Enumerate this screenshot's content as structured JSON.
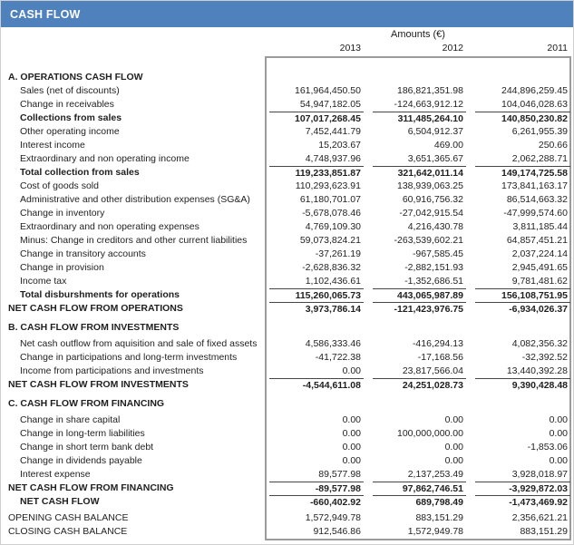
{
  "title_bar": {
    "title": "CASH FLOW",
    "accent_color": "#4f81bd",
    "title_color": "#ffffff"
  },
  "table": {
    "amounts_header": "Amounts (€)",
    "years": [
      "2013",
      "2012",
      "2011"
    ],
    "box_border_color": "#9b9b9b",
    "sum_line_color": "#474747",
    "rows": [
      {
        "type": "section",
        "label": "A. OPERATIONS CASH FLOW"
      },
      {
        "type": "item",
        "label": "Sales (net of discounts)",
        "values": [
          "161,964,450.50",
          "186,821,351.98",
          "244,896,259.45"
        ]
      },
      {
        "type": "item",
        "label": "Change in receivables",
        "values": [
          "54,947,182.05",
          "-124,663,912.12",
          "104,046,028.63"
        ]
      },
      {
        "type": "subtotal",
        "label": "Collections from sales",
        "values": [
          "107,017,268.45",
          "311,485,264.10",
          "140,850,230.82"
        ]
      },
      {
        "type": "item",
        "label": "Other operating income",
        "values": [
          "7,452,441.79",
          "6,504,912.37",
          "6,261,955.39"
        ]
      },
      {
        "type": "item",
        "label": "Interest income",
        "values": [
          "15,203.67",
          "469.00",
          "250.66"
        ]
      },
      {
        "type": "item",
        "label": "Extraordinary and non operating income",
        "values": [
          "4,748,937.96",
          "3,651,365.67",
          "2,062,288.71"
        ]
      },
      {
        "type": "subtotal",
        "label": "Total collection from sales",
        "values": [
          "119,233,851.87",
          "321,642,011.14",
          "149,174,725.58"
        ]
      },
      {
        "type": "item",
        "label": "Cost of goods sold",
        "values": [
          "110,293,623.91",
          "138,939,063.25",
          "173,841,163.17"
        ]
      },
      {
        "type": "item",
        "label": "Administrative and other distribution expenses (SG&A)",
        "values": [
          "61,180,701.07",
          "60,916,756.32",
          "86,514,663.32"
        ]
      },
      {
        "type": "item",
        "label": "Change in inventory",
        "values": [
          "-5,678,078.46",
          "-27,042,915.54",
          "-47,999,574.60"
        ]
      },
      {
        "type": "item",
        "label": "Extraordinary and non operating expenses",
        "values": [
          "4,769,109.30",
          "4,216,430.78",
          "3,811,185.44"
        ]
      },
      {
        "type": "item",
        "label": "Minus: Change in creditors and other current liabilities",
        "values": [
          "59,073,824.21",
          "-263,539,602.21",
          "64,857,451.21"
        ]
      },
      {
        "type": "item",
        "label": "Change in transitory accounts",
        "values": [
          "-37,261.19",
          "-967,585.45",
          "2,037,224.14"
        ]
      },
      {
        "type": "item",
        "label": "Change in provision",
        "values": [
          "-2,628,836.32",
          "-2,882,151.93",
          "2,945,491.65"
        ]
      },
      {
        "type": "item",
        "label": "Income tax",
        "values": [
          "1,102,436.61",
          "-1,352,686.51",
          "9,781,481.62"
        ]
      },
      {
        "type": "subtotal",
        "label": "Total disburshments for operations",
        "values": [
          "115,260,065.73",
          "443,065,987.89",
          "156,108,751.95"
        ]
      },
      {
        "type": "net",
        "label": "NET CASH FLOW FROM OPERATIONS",
        "values": [
          "3,973,786.14",
          "-121,423,976.75",
          "-6,934,026.37"
        ]
      },
      {
        "type": "spacer6"
      },
      {
        "type": "section",
        "label": "B. CASH FLOW FROM INVESTMENTS"
      },
      {
        "type": "spacer3"
      },
      {
        "type": "item",
        "label": "Net cash outflow from aquisition and sale of fixed assets",
        "values": [
          "4,586,333.46",
          "-416,294.13",
          "4,082,356.32"
        ]
      },
      {
        "type": "item",
        "label": "Change in participations and long-term investments",
        "values": [
          "-41,722.38",
          "-17,168.56",
          "-32,392.52"
        ]
      },
      {
        "type": "item",
        "label": "Income from participations and investments",
        "values": [
          "0.00",
          "23,817,566.04",
          "13,440,392.28"
        ]
      },
      {
        "type": "net",
        "label": "NET CASH FLOW FROM INVESTMENTS",
        "values": [
          "-4,544,611.08",
          "24,251,028.73",
          "9,390,428.48"
        ]
      },
      {
        "type": "spacer6"
      },
      {
        "type": "section",
        "label": "C. CASH FLOW FROM FINANCING"
      },
      {
        "type": "spacer3"
      },
      {
        "type": "item",
        "label": "Change in share capital",
        "values": [
          "0.00",
          "0.00",
          "0.00"
        ]
      },
      {
        "type": "item",
        "label": "Change in long-term liabilities",
        "values": [
          "0.00",
          "100,000,000.00",
          "0.00"
        ]
      },
      {
        "type": "item",
        "label": "Change in short term bank debt",
        "values": [
          "0.00",
          "0.00",
          "-1,853.06"
        ]
      },
      {
        "type": "item",
        "label": "Change in dividends payable",
        "values": [
          "0.00",
          "0.00",
          "0.00"
        ]
      },
      {
        "type": "item",
        "label": "Interest expense",
        "values": [
          "89,577.98",
          "2,137,253.49",
          "3,928,018.97"
        ]
      },
      {
        "type": "net",
        "label": "NET CASH FLOW FROM FINANCING",
        "values": [
          "-89,577.98",
          "97,862,746.51",
          "-3,929,872.03"
        ]
      },
      {
        "type": "netcash",
        "label": "NET CASH FLOW",
        "values": [
          "-660,402.92",
          "689,798.49",
          "-1,473,469.92"
        ]
      },
      {
        "type": "spacer3"
      },
      {
        "type": "balance",
        "label": "OPENING CASH BALANCE",
        "values": [
          "1,572,949.78",
          "883,151.29",
          "2,356,621.21"
        ]
      },
      {
        "type": "balance",
        "label": "CLOSING CASH BALANCE",
        "values": [
          "912,546.86",
          "1,572,949.78",
          "883,151.29"
        ]
      }
    ]
  }
}
